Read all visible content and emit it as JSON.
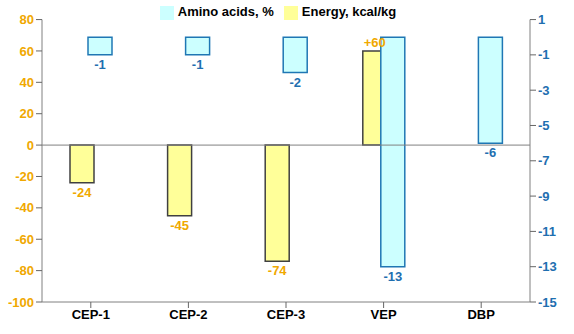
{
  "chart_data": {
    "type": "bar",
    "categories": [
      "CEP-1",
      "CEP-2",
      "CEP-3",
      "VEP",
      "DBP"
    ],
    "series": [
      {
        "name": "Energy, kcal/kg",
        "color": "#ffff99",
        "values": [
          -24,
          -45,
          -74,
          60,
          null
        ],
        "value_labels": [
          "-24",
          "-45",
          "-74",
          "+60",
          null
        ]
      },
      {
        "name": "Amino acids, %",
        "color": "#ccffff",
        "values": [
          -1,
          -1,
          -2,
          -13,
          -6
        ],
        "axis": "y2"
      }
    ],
    "ylim": [
      -100,
      80
    ],
    "yticks": [
      -100,
      -80,
      -60,
      -40,
      -20,
      0,
      20,
      40,
      60,
      80
    ],
    "y2lim": [
      -15,
      1
    ],
    "y2ticks": [
      -15,
      -13,
      -11,
      -9,
      -7,
      -5,
      -3,
      -1,
      1
    ],
    "data_labels": true,
    "legend": "top",
    "grid": false
  }
}
